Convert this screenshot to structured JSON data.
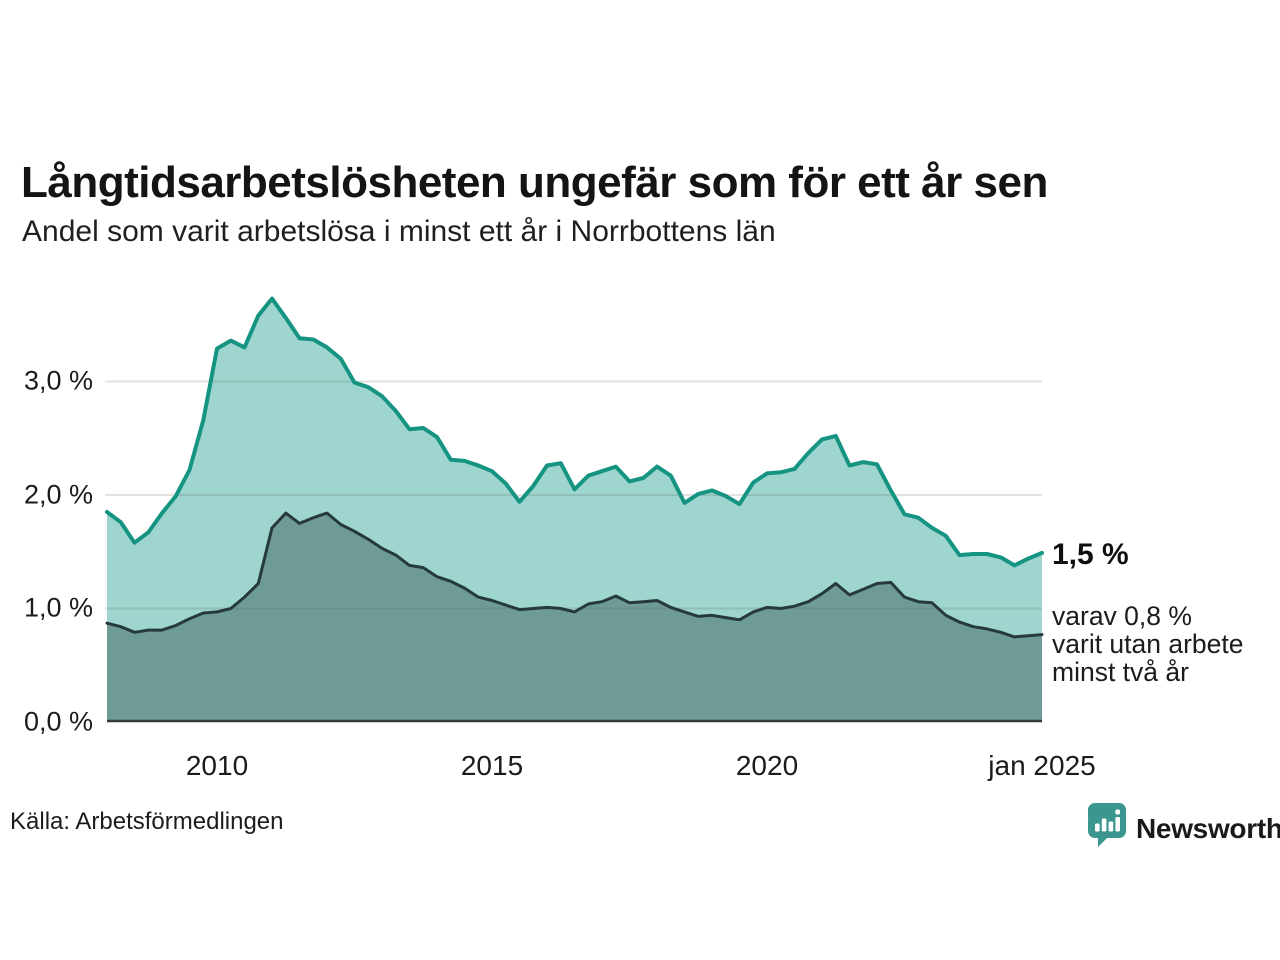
{
  "title": "Långtidsarbetslösheten ungefär som för ett år sen",
  "subtitle": "Andel som varit arbetslösa i minst ett år i Norrbottens län",
  "annotations": {
    "latest_total": "1,5 %",
    "latest_detail": "varav 0,8 %\nvarit utan arbete\nminst två år"
  },
  "source": "Källa: Arbetsförmedlingen",
  "brand": {
    "name": "Newsworthy",
    "icon": "newsworthy-speech-bubble-bar-chart-icon",
    "text_color": "#2e8f88",
    "icon_color": "#3a968e"
  },
  "palette": {
    "series_total_fill": "#9ed5ce",
    "series_total_stroke": "#169482",
    "series_two_year_fill": "#6f9b96",
    "series_two_year_stroke": "#263a3c",
    "gridline": "#dedede",
    "axis_line": "#333a3d",
    "text": "#1a1a1a"
  },
  "chart_data": {
    "type": "area",
    "title": "Långtidsarbetslösheten ungefär som för ett år sen",
    "subtitle": "Andel som varit arbetslösa i minst ett år i Norrbottens län",
    "unit": "%",
    "sampling": "quarterly",
    "x_range": [
      "2008 Q1",
      "2025 Q1"
    ],
    "ylim": [
      0,
      3.85
    ],
    "grid": "horizontal",
    "legend": "none (labelled by annotations at right edge)",
    "x": [
      "2008 Q1",
      "2008 Q2",
      "2008 Q3",
      "2008 Q4",
      "2009 Q1",
      "2009 Q2",
      "2009 Q3",
      "2009 Q4",
      "2010 Q1",
      "2010 Q2",
      "2010 Q3",
      "2010 Q4",
      "2011 Q1",
      "2011 Q2",
      "2011 Q3",
      "2011 Q4",
      "2012 Q1",
      "2012 Q2",
      "2012 Q3",
      "2012 Q4",
      "2013 Q1",
      "2013 Q2",
      "2013 Q3",
      "2013 Q4",
      "2014 Q1",
      "2014 Q2",
      "2014 Q3",
      "2014 Q4",
      "2015 Q1",
      "2015 Q2",
      "2015 Q3",
      "2015 Q4",
      "2016 Q1",
      "2016 Q2",
      "2016 Q3",
      "2016 Q4",
      "2017 Q1",
      "2017 Q2",
      "2017 Q3",
      "2017 Q4",
      "2018 Q1",
      "2018 Q2",
      "2018 Q3",
      "2018 Q4",
      "2019 Q1",
      "2019 Q2",
      "2019 Q3",
      "2019 Q4",
      "2020 Q1",
      "2020 Q2",
      "2020 Q3",
      "2020 Q4",
      "2021 Q1",
      "2021 Q2",
      "2021 Q3",
      "2021 Q4",
      "2022 Q1",
      "2022 Q2",
      "2022 Q3",
      "2022 Q4",
      "2023 Q1",
      "2023 Q2",
      "2023 Q3",
      "2023 Q4",
      "2024 Q1",
      "2024 Q2",
      "2024 Q3",
      "2024 Q4",
      "2025 Q1"
    ],
    "series": [
      {
        "name": "Andel arbetslösa minst ett år",
        "latest_label": "1,5 %",
        "fill": "#9ed5ce",
        "stroke": "#169482",
        "stroke_width": 4,
        "values": [
          1.85,
          1.76,
          1.58,
          1.67,
          1.84,
          1.99,
          2.22,
          2.66,
          3.29,
          3.36,
          3.3,
          3.58,
          3.73,
          3.56,
          3.38,
          3.37,
          3.3,
          3.2,
          2.99,
          2.95,
          2.87,
          2.74,
          2.58,
          2.59,
          2.51,
          2.31,
          2.3,
          2.26,
          2.21,
          2.1,
          1.94,
          2.08,
          2.26,
          2.28,
          2.05,
          2.17,
          2.21,
          2.25,
          2.12,
          2.15,
          2.25,
          2.17,
          1.93,
          2.01,
          2.04,
          1.99,
          1.92,
          2.11,
          2.19,
          2.2,
          2.23,
          2.37,
          2.49,
          2.52,
          2.26,
          2.29,
          2.27,
          2.04,
          1.83,
          1.8,
          1.71,
          1.64,
          1.47,
          1.48,
          1.48,
          1.45,
          1.38,
          1.44,
          1.49
        ]
      },
      {
        "name": "varav utan arbete minst två år",
        "latest_label": "0,8 %",
        "fill": "#6f9b96",
        "stroke": "#263a3c",
        "stroke_width": 3,
        "values": [
          0.87,
          0.84,
          0.79,
          0.81,
          0.81,
          0.85,
          0.91,
          0.96,
          0.97,
          1.0,
          1.1,
          1.22,
          1.71,
          1.84,
          1.75,
          1.8,
          1.84,
          1.74,
          1.68,
          1.61,
          1.53,
          1.47,
          1.38,
          1.36,
          1.28,
          1.24,
          1.18,
          1.1,
          1.07,
          1.03,
          0.99,
          1.0,
          1.01,
          1.0,
          0.97,
          1.04,
          1.06,
          1.11,
          1.05,
          1.06,
          1.07,
          1.01,
          0.97,
          0.93,
          0.94,
          0.92,
          0.9,
          0.97,
          1.01,
          1.0,
          1.02,
          1.06,
          1.13,
          1.22,
          1.12,
          1.17,
          1.22,
          1.23,
          1.1,
          1.06,
          1.05,
          0.94,
          0.88,
          0.84,
          0.82,
          0.79,
          0.75,
          0.76,
          0.77
        ]
      }
    ],
    "y_ticks": [
      {
        "label": "0,0 %",
        "value": 0
      },
      {
        "label": "1,0 %",
        "value": 1
      },
      {
        "label": "2,0 %",
        "value": 2
      },
      {
        "label": "3,0 %",
        "value": 3
      }
    ],
    "x_ticks": [
      {
        "label": "2010",
        "index": 8
      },
      {
        "label": "2015",
        "index": 28
      },
      {
        "label": "2020",
        "index": 48
      },
      {
        "label": "jan 2025",
        "index": 68
      }
    ]
  }
}
